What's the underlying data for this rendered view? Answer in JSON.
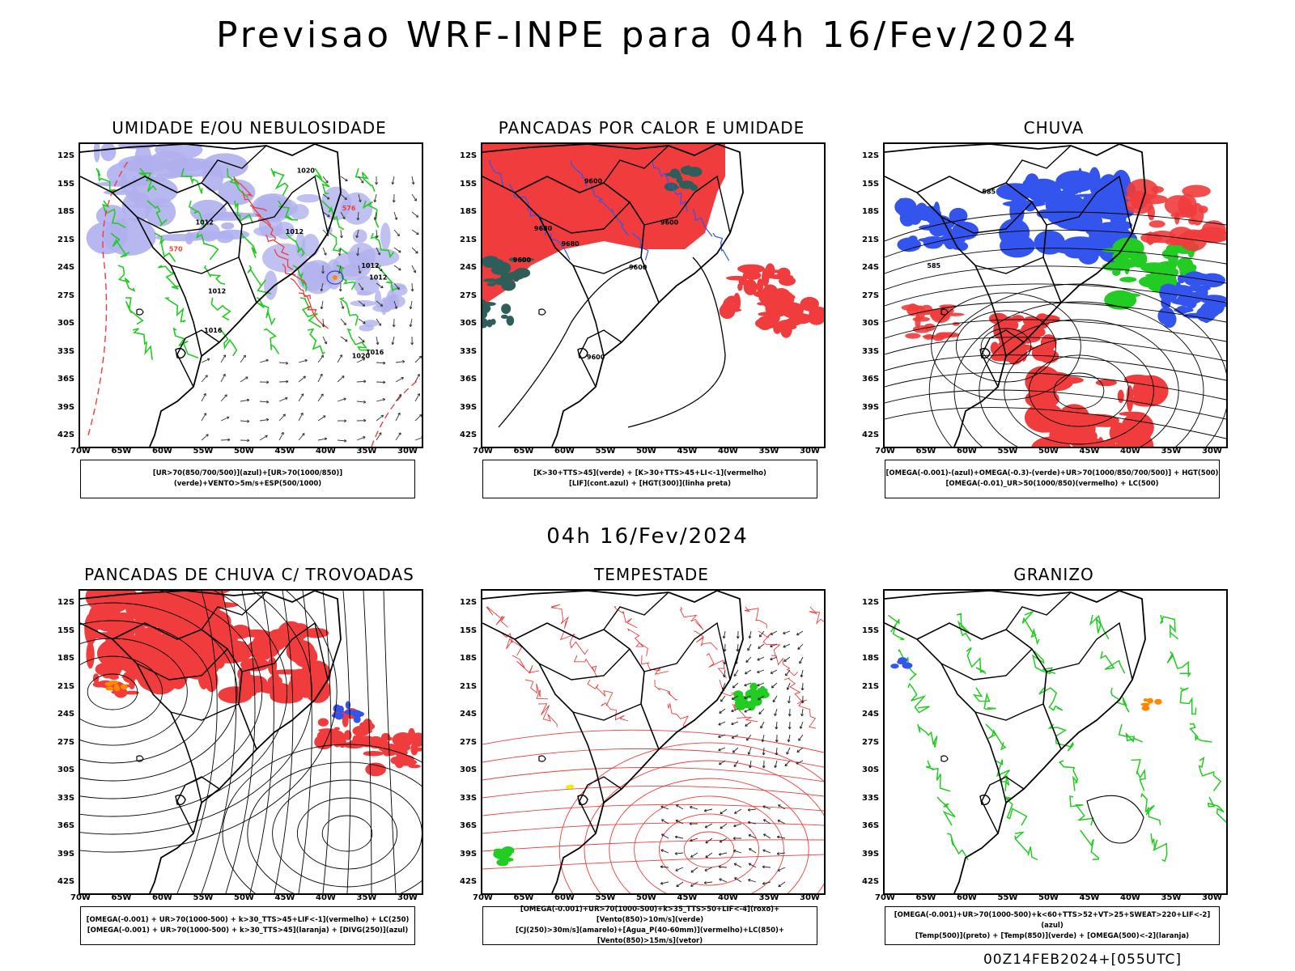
{
  "header": {
    "title": "Previsao WRF-INPE  para 04h 16/Fev/2024",
    "subtitle": "04h 16/Fev/2024",
    "footer": "00Z14FEB2024+[055UTC]"
  },
  "axes": {
    "lat_labels": [
      "12S",
      "15S",
      "18S",
      "21S",
      "24S",
      "27S",
      "30S",
      "33S",
      "36S",
      "39S",
      "42S"
    ],
    "lon_labels": [
      "70W",
      "65W",
      "60W",
      "55W",
      "50W",
      "45W",
      "40W",
      "35W",
      "30W"
    ]
  },
  "colors": {
    "red": "#f03c3c",
    "green": "#22cc22",
    "blue": "#3355ee",
    "lavender": "#b0b0ee",
    "darkteal": "#2e5e5a",
    "orange": "#ff8800",
    "yellow": "#eeee00"
  },
  "panels": [
    {
      "id": "umidade",
      "title": "UMIDADE E/OU NEBULOSIDADE",
      "legend": [
        "[UR>70(850/700/500)](azul)+[UR>70(1000/850)](verde)+VENTO>5m/s+ESP(500/1000)"
      ],
      "contour_labels": [
        "1012",
        "1012",
        "1012",
        "1012",
        "1012",
        "1016",
        "1016",
        "1020",
        "1020",
        "576",
        "570"
      ]
    },
    {
      "id": "pancadas_calor",
      "title": "PANCADAS POR CALOR E UMIDADE",
      "legend": [
        "[K>30+TTS>45](verde) + [K>30+TTS>45+LI<-1](vermelho)",
        "[LIF](cont.azul) + [HGT(300)](linha preta)"
      ],
      "contour_labels": [
        "9680",
        "9680",
        "9600",
        "9600",
        "9600",
        "9600",
        "9600"
      ]
    },
    {
      "id": "chuva",
      "title": "CHUVA",
      "legend": [
        "[OMEGA(-0.001)-(azul)+OMEGA(-0.3)-(verde)+UR>70(1000/850/700/500)] + HGT(500)",
        "[OMEGA(-0.01)_UR>50(1000/850)(vermelho) + LC(500)"
      ],
      "contour_labels": [
        "585",
        "585"
      ]
    },
    {
      "id": "pancadas_trovoadas",
      "title": "PANCADAS DE CHUVA C/ TROVOADAS",
      "legend": [
        "[OMEGA(-0.001) + UR>70(1000-500) + k>30_TTS>45+LIF<-1](vermelho) + LC(250)",
        "[OMEGA(-0.001) + UR>70(1000-500) + k>30_TTS>45](laranja) + [DIVG(250)](azul)"
      ],
      "contour_labels": []
    },
    {
      "id": "tempestade",
      "title": "TEMPESTADE",
      "legend": [
        "[OMEGA(-0.001)+UR>70(1000-500)+k>35_TTS>50+LIF<-4](roxo)+[Vento(850)>10m/s](verde)",
        "[CJ(250)>30m/s](amarelo)+[Agua_P(40-60mm)](vermelho)+LC(850)+[Vento(850)>15m/s](vetor)"
      ],
      "contour_labels": []
    },
    {
      "id": "granizo",
      "title": "GRANIZO",
      "legend": [
        "[OMEGA(-0.001)+UR>70(1000-500)+k<60+TTS>52+VT>25+SWEAT>220+LIF<-2](azul)",
        "[Temp(500)](preto) + [Temp(850)](verde) + [OMEGA(500)<-2](laranja)"
      ],
      "contour_labels": []
    }
  ]
}
